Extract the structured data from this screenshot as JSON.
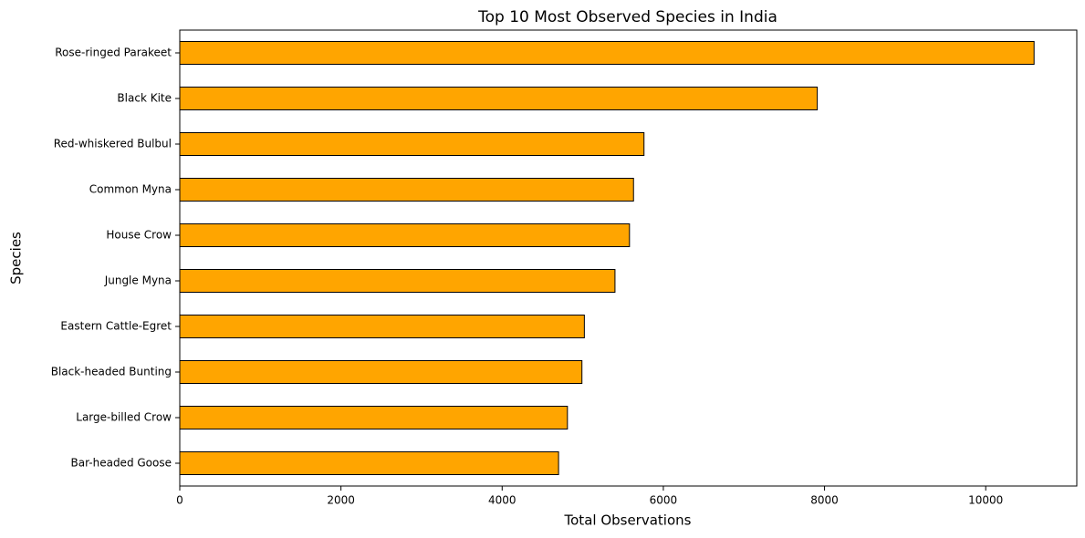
{
  "chart_data": {
    "type": "barh",
    "title": "Top 10 Most Observed Species in India",
    "x_label": "Total Observations",
    "y_label": "Species",
    "categories": [
      "Rose-ringed Parakeet",
      "Black Kite",
      "Red-whiskered Bulbul",
      "Common Myna",
      "House Crow",
      "Jungle Myna",
      "Eastern Cattle-Egret",
      "Black-headed Bunting",
      "Large-billed Crow",
      "Bar-headed Goose"
    ],
    "values": [
      10600,
      7910,
      5760,
      5630,
      5580,
      5400,
      5020,
      4990,
      4810,
      4700
    ],
    "color": "#ffa500",
    "edge_color": "#000000",
    "xlim": [
      0,
      11130
    ],
    "xticks": [
      0,
      2000,
      4000,
      6000,
      8000,
      10000
    ],
    "grid": false
  }
}
